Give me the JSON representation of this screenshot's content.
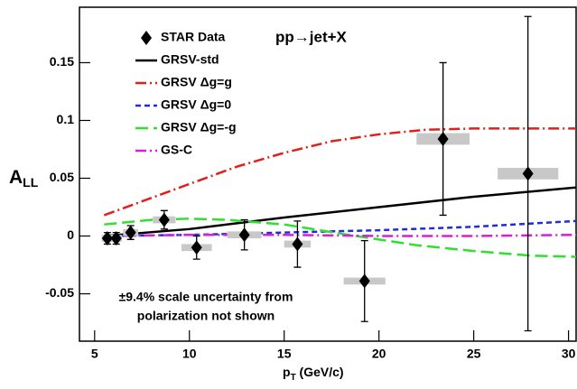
{
  "chart_data": {
    "type": "errorbar-with-curves",
    "annotation": "pp→jet+X",
    "note_lines": [
      "±9.4% scale uncertainty from",
      "polarization not shown"
    ],
    "y_label": "A",
    "y_label_sub": "LL",
    "x_label": "p",
    "x_label_sub": "T",
    "x_label_unit": " (GeV/c)",
    "xlim": [
      4.2,
      30.4
    ],
    "ylim": [
      -0.091,
      0.198
    ],
    "xticks": [
      5,
      10,
      15,
      20,
      25,
      30
    ],
    "yticks": [
      -0.05,
      0,
      0.05,
      0.1,
      0.15
    ],
    "legend": "upper left",
    "points": {
      "name": "STAR Data",
      "color": "#000000",
      "box_color": "#c8c8c8",
      "x": [
        5.67,
        6.14,
        6.9,
        8.67,
        10.38,
        12.9,
        15.7,
        19.24,
        23.38,
        27.86
      ],
      "y": [
        -0.002,
        -0.002,
        0.003,
        0.014,
        -0.01,
        0.001,
        -0.007,
        -0.039,
        0.084,
        0.054
      ],
      "err": [
        0.005,
        0.005,
        0.006,
        0.008,
        0.01,
        0.013,
        0.02,
        0.035,
        0.066,
        0.136
      ],
      "box_halfwidth": [
        0.3,
        0.3,
        0.4,
        0.6,
        0.8,
        0.9,
        0.7,
        1.1,
        1.4,
        1.6
      ],
      "box_halfheight": [
        0.003,
        0.003,
        0.003,
        0.003,
        0.003,
        0.003,
        0.003,
        0.003,
        0.005,
        0.005
      ]
    },
    "series": [
      {
        "name": "GRSV-std",
        "color": "#000000",
        "style": "solid",
        "x": [
          5.5,
          7,
          10,
          15,
          20,
          25,
          30.4
        ],
        "y": [
          0,
          0.002,
          0.006,
          0.016,
          0.025,
          0.034,
          0.042
        ]
      },
      {
        "name": "GRSV Δg=g",
        "color": "#e0201b",
        "style": "dashdot",
        "x": [
          5.5,
          7.5,
          10,
          12.5,
          15,
          17.5,
          20,
          22.5,
          25,
          27.5,
          30.4
        ],
        "y": [
          0.018,
          0.03,
          0.045,
          0.06,
          0.072,
          0.082,
          0.088,
          0.092,
          0.093,
          0.093,
          0.093
        ]
      },
      {
        "name": "GRSV Δg=0",
        "color": "#1c2fd6",
        "style": "dashed",
        "x": [
          5.5,
          10,
          15,
          20,
          25,
          30.4
        ],
        "y": [
          0,
          0.001,
          0.003,
          0.005,
          0.008,
          0.013
        ]
      },
      {
        "name": "GRSV Δg=-g",
        "color": "#2fe02f",
        "style": "longdash",
        "x": [
          5.5,
          8,
          10,
          12,
          15,
          18,
          20,
          22,
          25,
          28,
          30.4
        ],
        "y": [
          0.01,
          0.014,
          0.015,
          0.014,
          0.01,
          0.002,
          -0.003,
          -0.008,
          -0.013,
          -0.017,
          -0.018
        ]
      },
      {
        "name": "GS-C",
        "color": "#d81fd8",
        "style": "dashdot",
        "x": [
          5.5,
          10,
          15,
          20,
          25,
          30.4
        ],
        "y": [
          0,
          0.001,
          0.001,
          0,
          0,
          0.001
        ]
      }
    ]
  }
}
